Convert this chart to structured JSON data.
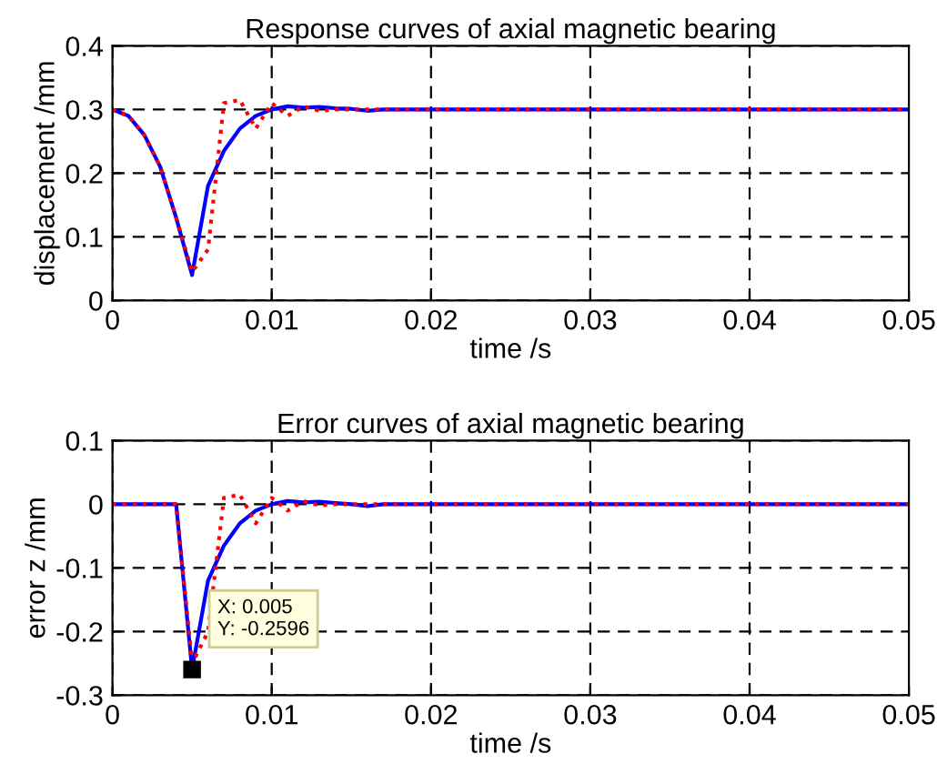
{
  "chart_data": [
    {
      "type": "line",
      "title": "Response curves of axial magnetic bearing",
      "xlabel": "time /s",
      "ylabel": "displacement /mm",
      "xlim": [
        0,
        0.05
      ],
      "ylim": [
        0,
        0.4
      ],
      "xticks": [
        0,
        0.01,
        0.02,
        0.03,
        0.04,
        0.05
      ],
      "yticks": [
        0,
        0.1,
        0.2,
        0.3,
        0.4
      ],
      "grid": true,
      "series": [
        {
          "color": "#0000ff",
          "line_style": "solid",
          "x": [
            0,
            0.001,
            0.002,
            0.003,
            0.004,
            0.005,
            0.006,
            0.007,
            0.008,
            0.009,
            0.01,
            0.011,
            0.012,
            0.013,
            0.014,
            0.015,
            0.016,
            0.017,
            0.05
          ],
          "values": [
            0.3,
            0.29,
            0.26,
            0.21,
            0.13,
            0.04,
            0.18,
            0.235,
            0.27,
            0.29,
            0.3,
            0.305,
            0.303,
            0.304,
            0.302,
            0.301,
            0.298,
            0.3,
            0.3
          ]
        },
        {
          "color": "#ff0000",
          "line_style": "dotted",
          "x": [
            0,
            0.001,
            0.002,
            0.003,
            0.004,
            0.005,
            0.006,
            0.007,
            0.008,
            0.009,
            0.01,
            0.011,
            0.012,
            0.013,
            0.014,
            0.015,
            0.05
          ],
          "values": [
            0.3,
            0.29,
            0.26,
            0.21,
            0.13,
            0.045,
            0.08,
            0.31,
            0.315,
            0.27,
            0.31,
            0.29,
            0.305,
            0.298,
            0.3,
            0.3,
            0.3
          ]
        }
      ]
    },
    {
      "type": "line",
      "title": "Error curves of axial magnetic bearing",
      "xlabel": "time /s",
      "ylabel": "error z /mm",
      "xlim": [
        0,
        0.05
      ],
      "ylim": [
        -0.3,
        0.1
      ],
      "xticks": [
        0,
        0.01,
        0.02,
        0.03,
        0.04,
        0.05
      ],
      "yticks": [
        -0.3,
        -0.2,
        -0.1,
        0,
        0.1
      ],
      "grid": true,
      "annotations": [
        {
          "text": "X: 0.005\nY: -0.2596",
          "x": 0.005,
          "y": -0.2596
        }
      ],
      "series": [
        {
          "color": "#0000ff",
          "line_style": "solid",
          "x": [
            0,
            0.004,
            0.005,
            0.006,
            0.007,
            0.008,
            0.009,
            0.01,
            0.011,
            0.012,
            0.013,
            0.014,
            0.015,
            0.016,
            0.017,
            0.05
          ],
          "values": [
            0,
            0,
            -0.2596,
            -0.12,
            -0.065,
            -0.03,
            -0.01,
            0,
            0.005,
            0.003,
            0.004,
            0.002,
            0,
            -0.003,
            0,
            0
          ]
        },
        {
          "color": "#ff0000",
          "line_style": "dotted",
          "x": [
            0,
            0.004,
            0.005,
            0.006,
            0.007,
            0.008,
            0.009,
            0.01,
            0.011,
            0.012,
            0.013,
            0.014,
            0.05
          ],
          "values": [
            0,
            0,
            -0.25,
            -0.2,
            0.01,
            0.015,
            -0.03,
            0.01,
            -0.01,
            0.005,
            -0.002,
            0,
            0
          ]
        }
      ]
    }
  ]
}
